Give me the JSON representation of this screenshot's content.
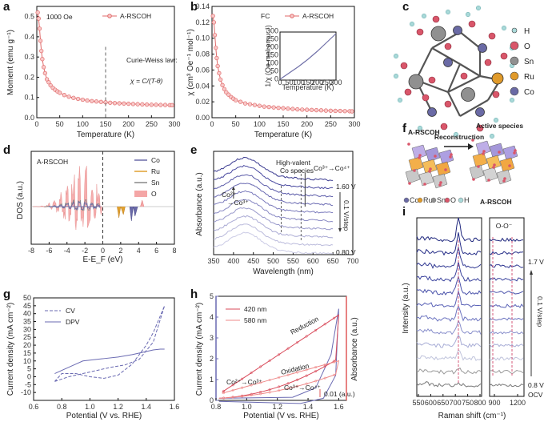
{
  "panel_labels": {
    "a": "a",
    "b": "b",
    "c": "c",
    "d": "d",
    "e": "e",
    "f": "f",
    "g": "g",
    "h": "h",
    "i": "i"
  },
  "chart_data": [
    {
      "id": "a",
      "type": "line",
      "ylabel": "Moment (emu g⁻¹)",
      "xlabel": "Temperature (K)",
      "legend": "A-RSCOH",
      "field_label": "1000 Oe",
      "annotation_law": "Curie-Weiss law:",
      "annotation_formula": "χ = C/(T-θ)",
      "xlim": [
        0,
        300
      ],
      "ylim": [
        0,
        0.55
      ],
      "xticks": [
        "0",
        "50",
        "100",
        "150",
        "200",
        "250",
        "300"
      ],
      "yticks": [
        "0.0",
        "0.1",
        "0.2",
        "0.3",
        "0.4",
        "0.5"
      ],
      "marker_line_x": 150,
      "x": [
        2,
        4,
        6,
        8,
        10,
        12,
        15,
        18,
        22,
        26,
        30,
        35,
        40,
        45,
        50,
        60,
        70,
        80,
        90,
        100,
        110,
        120,
        130,
        140,
        150,
        160,
        170,
        180,
        190,
        200,
        210,
        220,
        230,
        240,
        250,
        260,
        270,
        280,
        290,
        295
      ],
      "y": [
        0.52,
        0.49,
        0.44,
        0.38,
        0.33,
        0.29,
        0.25,
        0.22,
        0.19,
        0.175,
        0.16,
        0.148,
        0.138,
        0.13,
        0.123,
        0.112,
        0.104,
        0.098,
        0.093,
        0.089,
        0.085,
        0.082,
        0.08,
        0.078,
        0.076,
        0.074,
        0.072,
        0.071,
        0.07,
        0.069,
        0.068,
        0.067,
        0.066,
        0.065,
        0.064,
        0.064,
        0.063,
        0.063,
        0.062,
        0.062
      ]
    },
    {
      "id": "b",
      "type": "line",
      "ylabel": "χ (cm³ Oe⁻¹ mol⁻¹)",
      "xlabel": "Temperature (K)",
      "legend": "A-RSCOH",
      "mode_label": "FC",
      "xlim": [
        0,
        300
      ],
      "ylim": [
        0,
        0.14
      ],
      "xticks": [
        "0",
        "50",
        "100",
        "150",
        "200",
        "250",
        "300"
      ],
      "yticks": [
        "0.00",
        "0.02",
        "0.04",
        "0.06",
        "0.08",
        "0.10",
        "0.12",
        "0.14"
      ],
      "x": [
        2,
        4,
        6,
        8,
        10,
        12,
        15,
        18,
        22,
        26,
        30,
        35,
        40,
        45,
        50,
        60,
        70,
        80,
        90,
        100,
        110,
        120,
        130,
        140,
        150,
        160,
        170,
        180,
        190,
        200,
        210,
        220,
        230,
        240,
        250,
        260,
        270,
        280,
        290,
        295
      ],
      "y": [
        0.128,
        0.12,
        0.104,
        0.088,
        0.075,
        0.065,
        0.056,
        0.048,
        0.041,
        0.036,
        0.032,
        0.029,
        0.026,
        0.024,
        0.022,
        0.02,
        0.018,
        0.017,
        0.016,
        0.015,
        0.014,
        0.0135,
        0.013,
        0.0125,
        0.012,
        0.0115,
        0.011,
        0.0105,
        0.0102,
        0.01,
        0.0098,
        0.0095,
        0.0093,
        0.009,
        0.0088,
        0.0086,
        0.0085,
        0.0083,
        0.0082,
        0.008
      ],
      "inset": {
        "ylabel": "1/χ (Oe mol emu⁻¹)",
        "xlabel": "Temperature (K)",
        "xticks": [
          "0",
          "50",
          "100",
          "150",
          "200",
          "250",
          "300"
        ],
        "yticks": [
          "0",
          "50",
          "100",
          "150",
          "200",
          "250",
          "300"
        ],
        "x": [
          0,
          50,
          100,
          150,
          200,
          250,
          300
        ],
        "y": [
          5,
          45,
          85,
          130,
          180,
          235,
          290
        ]
      }
    },
    {
      "id": "d",
      "type": "area",
      "ylabel": "DOS (a.u.)",
      "xlabel": "E-E_F (eV)",
      "title": "A-RSCOH",
      "xlim": [
        -8,
        8
      ],
      "xticks": [
        "-8",
        "-6",
        "-4",
        "-2",
        "0",
        "2",
        "4",
        "6",
        "8"
      ],
      "series": [
        {
          "name": "Co",
          "color": "#6a6aa8"
        },
        {
          "name": "Ru",
          "color": "#e0a030"
        },
        {
          "name": "Sn",
          "color": "#888888"
        },
        {
          "name": "O",
          "color": "#f4a6a6"
        }
      ]
    },
    {
      "id": "e",
      "type": "line",
      "ylabel": "Absorbance (a.u.)",
      "xlabel": "Wavelength (nm)",
      "xlim": [
        350,
        700
      ],
      "xticks": [
        "350",
        "400",
        "450",
        "500",
        "550",
        "600",
        "650",
        "700"
      ],
      "labels": {
        "hv": "High-valent",
        "hv2": "Co species",
        "co34": "Co³⁺→Co⁴⁺",
        "co23": "Co²⁺",
        "co23b": "→Co³⁺",
        "v_hi": "1.60 V",
        "v_lo": "0.80 V",
        "step": "0.1 V/step"
      }
    },
    {
      "id": "g",
      "type": "line",
      "ylabel": "Current density (mA cm⁻²)",
      "xlabel": "Potential (V vs. RHE)",
      "xlim": [
        0.6,
        1.6
      ],
      "ylim": [
        -15,
        50
      ],
      "xticks": [
        "0.6",
        "0.8",
        "1.0",
        "1.2",
        "1.4",
        "1.6"
      ],
      "yticks": [
        "-10",
        "-5",
        "0",
        "5",
        "10",
        "15",
        "20",
        "25",
        "30",
        "35",
        "40",
        "45",
        "50"
      ],
      "series": [
        {
          "name": "CV",
          "style": "dashed",
          "x": [
            0.75,
            0.85,
            0.95,
            1.05,
            1.15,
            1.25,
            1.35,
            1.45,
            1.53,
            1.45,
            1.4,
            1.35,
            1.3,
            1.2,
            1.1,
            1.0,
            0.9,
            0.8,
            0.75
          ],
          "y": [
            -3,
            0,
            2,
            4,
            6,
            7.5,
            11,
            22,
            45,
            28,
            20,
            14,
            8,
            1,
            -1,
            0,
            2,
            2,
            -3
          ]
        },
        {
          "name": "DPV",
          "style": "solid",
          "x": [
            0.75,
            0.8,
            0.9,
            0.95,
            1.0,
            1.05,
            1.1,
            1.2,
            1.3,
            1.4,
            1.45,
            1.5,
            1.53
          ],
          "y": [
            2,
            4,
            8,
            10,
            10.5,
            11,
            11.5,
            12.5,
            14,
            16,
            17,
            17.5,
            17.5
          ]
        }
      ]
    },
    {
      "id": "h",
      "type": "line",
      "ylabel": "Current density (mA cm⁻²)",
      "ylabel2": "Absorbance (a.u.)",
      "xlabel": "Potential (V vs. RHE)",
      "xlim": [
        0.8,
        1.65
      ],
      "ylim": [
        0,
        5
      ],
      "xticks": [
        "0.8",
        "1.0",
        "1.2",
        "1.4",
        "1.6"
      ],
      "yticks": [
        "0",
        "1",
        "2",
        "3",
        "4",
        "5"
      ],
      "legend": [
        "420 nm",
        "580 nm"
      ],
      "labels": {
        "red": "Reduction",
        "ox": "Oxidation",
        "c23": "Co²⁺→Co³⁺",
        "c34": "Co³⁺→Co⁴⁺",
        "scale": "0.01 (a.u.)"
      }
    },
    {
      "id": "i",
      "type": "line",
      "ylabel": "Intensity (a.u.)",
      "xlabel": "Raman shift (cm⁻¹)",
      "xticks": [
        "550",
        "600",
        "650",
        "700",
        "750",
        "800"
      ],
      "xticks2": [
        "900",
        "1200"
      ],
      "labels": {
        "oo": "O-O⁻",
        "v_hi": "1.7 V",
        "v_lo": "0.8 V",
        "ocv": "OCV",
        "step": "0.1 V/step"
      }
    }
  ],
  "panel_c": {
    "legend": [
      {
        "label": "H",
        "color": "#a9d9d9"
      },
      {
        "label": "O",
        "color": "#d9566a"
      },
      {
        "label": "Sn",
        "color": "#909090"
      },
      {
        "label": "Ru",
        "color": "#e09a2a"
      },
      {
        "label": "Co",
        "color": "#6a6aa5"
      }
    ]
  },
  "panel_f": {
    "left_title": "A-RSCOH",
    "right_title": "Active species",
    "arrow_label": "Reconstruction",
    "right_bottom": "A-RSCOH",
    "legend": [
      "Co",
      "Ru",
      "Sn",
      "O",
      "H"
    ]
  }
}
